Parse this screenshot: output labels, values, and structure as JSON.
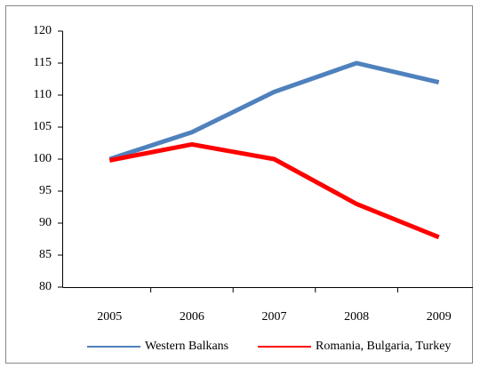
{
  "chart_data": {
    "type": "line",
    "categories": [
      "2005",
      "2006",
      "2007",
      "2008",
      "2009"
    ],
    "series": [
      {
        "name": "Western Balkans",
        "color": "#4f81bd",
        "values": [
          100,
          104.2,
          110.5,
          115,
          112
        ]
      },
      {
        "name": "Romania, Bulgaria, Turkey",
        "color": "#ff0000",
        "values": [
          99.8,
          102.3,
          100,
          93,
          87.8
        ]
      }
    ],
    "ylim": [
      80,
      120
    ],
    "yticks": [
      80,
      85,
      90,
      95,
      100,
      105,
      110,
      115,
      120
    ],
    "grid": false,
    "legend": "bottom"
  }
}
